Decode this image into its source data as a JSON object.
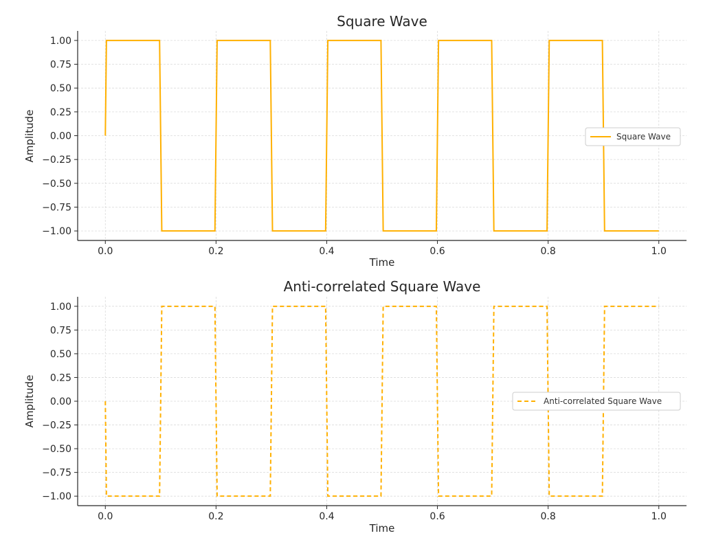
{
  "chart_data": [
    {
      "type": "line",
      "title": "Square Wave",
      "xlabel": "Time",
      "ylabel": "Amplitude",
      "xlim": [
        -0.05,
        1.05
      ],
      "ylim": [
        -1.1,
        1.1
      ],
      "xticks": [
        "0.0",
        "0.2",
        "0.4",
        "0.6",
        "0.8",
        "1.0"
      ],
      "xtick_values": [
        0.0,
        0.2,
        0.4,
        0.6,
        0.8,
        1.0
      ],
      "yticks": [
        "1.00",
        "0.75",
        "0.50",
        "0.25",
        "0.00",
        "−0.25",
        "−0.50",
        "−0.75",
        "−1.00"
      ],
      "ytick_values": [
        1.0,
        0.75,
        0.5,
        0.25,
        0.0,
        -0.25,
        -0.5,
        -0.75,
        -1.0
      ],
      "grid": true,
      "legend_position": "center-right",
      "series": [
        {
          "name": "Square Wave",
          "color": "#FFB000",
          "style": "solid",
          "x": [
            0.0,
            0.002,
            0.098,
            0.102,
            0.198,
            0.202,
            0.298,
            0.302,
            0.398,
            0.402,
            0.498,
            0.502,
            0.598,
            0.602,
            0.698,
            0.702,
            0.798,
            0.802,
            0.898,
            0.902,
            1.0
          ],
          "y": [
            0.0,
            1.0,
            1.0,
            -1.0,
            -1.0,
            1.0,
            1.0,
            -1.0,
            -1.0,
            1.0,
            1.0,
            -1.0,
            -1.0,
            1.0,
            1.0,
            -1.0,
            -1.0,
            1.0,
            1.0,
            -1.0,
            -1.0
          ]
        }
      ]
    },
    {
      "type": "line",
      "title": "Anti-correlated Square Wave",
      "xlabel": "Time",
      "ylabel": "Amplitude",
      "xlim": [
        -0.05,
        1.05
      ],
      "ylim": [
        -1.1,
        1.1
      ],
      "xticks": [
        "0.0",
        "0.2",
        "0.4",
        "0.6",
        "0.8",
        "1.0"
      ],
      "xtick_values": [
        0.0,
        0.2,
        0.4,
        0.6,
        0.8,
        1.0
      ],
      "yticks": [
        "1.00",
        "0.75",
        "0.50",
        "0.25",
        "0.00",
        "−0.25",
        "−0.50",
        "−0.75",
        "−1.00"
      ],
      "ytick_values": [
        1.0,
        0.75,
        0.5,
        0.25,
        0.0,
        -0.25,
        -0.5,
        -0.75,
        -1.0
      ],
      "grid": true,
      "legend_position": "center-right",
      "series": [
        {
          "name": "Anti-correlated Square Wave",
          "color": "#FFB000",
          "style": "dashed",
          "x": [
            0.0,
            0.002,
            0.098,
            0.102,
            0.198,
            0.202,
            0.298,
            0.302,
            0.398,
            0.402,
            0.498,
            0.502,
            0.598,
            0.602,
            0.698,
            0.702,
            0.798,
            0.802,
            0.898,
            0.902,
            1.0
          ],
          "y": [
            0.0,
            -1.0,
            -1.0,
            1.0,
            1.0,
            -1.0,
            -1.0,
            1.0,
            1.0,
            -1.0,
            -1.0,
            1.0,
            1.0,
            -1.0,
            -1.0,
            1.0,
            1.0,
            -1.0,
            -1.0,
            1.0,
            1.0
          ]
        }
      ]
    }
  ]
}
